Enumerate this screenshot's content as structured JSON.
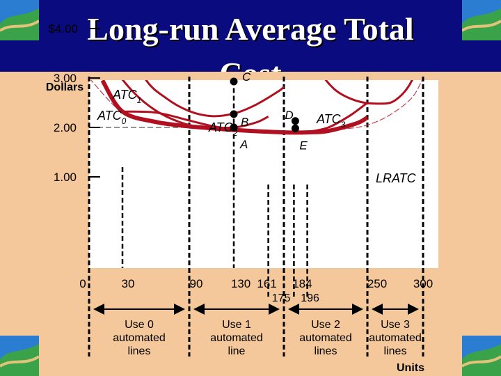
{
  "slide": {
    "title": "Long-run Average Total Cost"
  },
  "colors": {
    "background": "#f4c89a",
    "header": "#0b0b80",
    "curve": "#b01020",
    "envelope": "#c04050",
    "axis": "#000000"
  },
  "chart_data": {
    "type": "line",
    "title": "Long-run Average Total Cost",
    "ylabel": "Dollars",
    "xlabel": "Units",
    "ylim": [
      0,
      4
    ],
    "y_ticks": [
      {
        "value": 4,
        "label": "$4.00"
      },
      {
        "value": 3,
        "label": "3.00"
      },
      {
        "value": 2,
        "label": "2.00"
      },
      {
        "value": 1,
        "label": "1.00"
      }
    ],
    "x_ticks": [
      {
        "value": 0,
        "label": "0"
      },
      {
        "value": 30,
        "label": "30"
      },
      {
        "value": 90,
        "label": "90"
      },
      {
        "value": 130,
        "label": "130"
      },
      {
        "value": 161,
        "label": "161"
      },
      {
        "value": 184,
        "label": "184"
      },
      {
        "value": 250,
        "label": "250"
      },
      {
        "value": 300,
        "label": "300"
      }
    ],
    "x_ticks_lower": [
      {
        "value": 175,
        "label": "175"
      },
      {
        "value": 196,
        "label": "196"
      }
    ],
    "series": [
      {
        "name": "ATC0",
        "sub": "0",
        "x": [
          3,
          20,
          40,
          60,
          80,
          100,
          130,
          150,
          161
        ],
        "y": [
          4.1,
          3.29,
          2.71,
          2.34,
          2.12,
          2.01,
          2.0,
          2.1,
          2.22
        ]
      },
      {
        "name": "ATC1",
        "sub": "1",
        "x": [
          30,
          50,
          70,
          90,
          110,
          130,
          150,
          170,
          175
        ],
        "y": [
          4.0,
          3.0,
          2.58,
          2.33,
          2.23,
          2.28,
          2.46,
          2.73,
          2.82
        ]
      },
      {
        "name": "ATC2",
        "sub": "2",
        "x": [
          30,
          60,
          90,
          110,
          130,
          150,
          170,
          184,
          196,
          215,
          235,
          250
        ],
        "y": [
          2.32,
          2.3,
          2.14,
          2.03,
          1.96,
          1.93,
          1.9,
          1.9,
          1.91,
          2.0,
          2.25,
          2.5
        ]
      },
      {
        "name": "ATC3",
        "sub": "3",
        "x": [
          196,
          205,
          220,
          240,
          260,
          275,
          290,
          300,
          306
        ],
        "y": [
          4.0,
          3.25,
          2.78,
          2.54,
          2.48,
          2.55,
          2.95,
          3.7,
          4.5
        ]
      }
    ],
    "envelope": {
      "name": "LRATC",
      "x": [
        0,
        30,
        60,
        90,
        130,
        175,
        196,
        230,
        250,
        270,
        290,
        300
      ],
      "y": [
        3.0,
        2.3,
        2.11,
        2.02,
        1.95,
        1.9,
        1.9,
        1.97,
        2.05,
        2.25,
        2.6,
        3.0
      ]
    },
    "curve_labels": [
      {
        "text": "ATC",
        "sub": "1"
      },
      {
        "text": "ATC",
        "sub": "0"
      },
      {
        "text": "ATC",
        "sub": "2"
      },
      {
        "text": "ATC",
        "sub": "3"
      },
      {
        "text": "LRATC",
        "sub": ""
      }
    ],
    "points": [
      {
        "label": "C",
        "x": 130,
        "y": 2.93
      },
      {
        "label": "B",
        "x": 130,
        "y": 2.27
      },
      {
        "label": "A",
        "x": 130,
        "y": 2.0
      },
      {
        "label": "D",
        "x": 184,
        "y": 2.13
      },
      {
        "label": "E",
        "x": 184,
        "y": 1.98
      }
    ],
    "ranges": [
      {
        "label": "Use 0 automated lines",
        "from": 0,
        "to": 90
      },
      {
        "label": "Use 1 automated line",
        "from": 90,
        "to": 175
      },
      {
        "label": "Use 2 automated lines",
        "from": 175,
        "to": 250
      },
      {
        "label": "Use 3 automated lines",
        "from": 250,
        "to": 300
      }
    ]
  }
}
